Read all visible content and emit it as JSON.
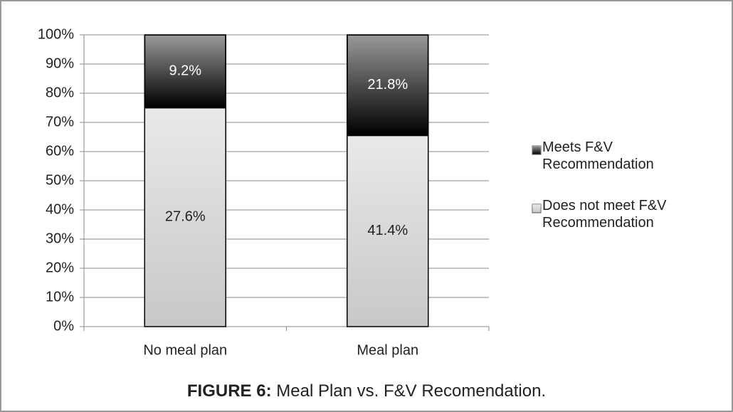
{
  "chart_data": {
    "type": "bar",
    "stack": "percent",
    "categories": [
      "No meal plan",
      "Meal plan"
    ],
    "series": [
      {
        "name": "Does not meet F&V Recommendation",
        "color": "#c8c8c8",
        "label_color": "#222222",
        "values": [
          27.6,
          41.4
        ],
        "value_labels": [
          "27.6%",
          "41.4%"
        ]
      },
      {
        "name": "Meets F&V Recommendation",
        "color": "#000000",
        "label_color": "#ffffff",
        "values": [
          9.2,
          21.8
        ],
        "value_labels": [
          "9.2%",
          "21.8%"
        ]
      }
    ],
    "ylim": [
      0,
      100
    ],
    "yticks": [
      {
        "value": 0,
        "label": "0%"
      },
      {
        "value": 10,
        "label": "10%"
      },
      {
        "value": 20,
        "label": "20%"
      },
      {
        "value": 30,
        "label": "30%"
      },
      {
        "value": 40,
        "label": "40%"
      },
      {
        "value": 50,
        "label": "50%"
      },
      {
        "value": 60,
        "label": "60%"
      },
      {
        "value": 70,
        "label": "70%"
      },
      {
        "value": 80,
        "label": "80%"
      },
      {
        "value": 90,
        "label": "90%"
      },
      {
        "value": 100,
        "label": "100%"
      }
    ],
    "grid": true,
    "legend": "right",
    "caption_label": "FIGURE 6:",
    "caption": "Meal Plan vs. F&V Recomendation."
  }
}
